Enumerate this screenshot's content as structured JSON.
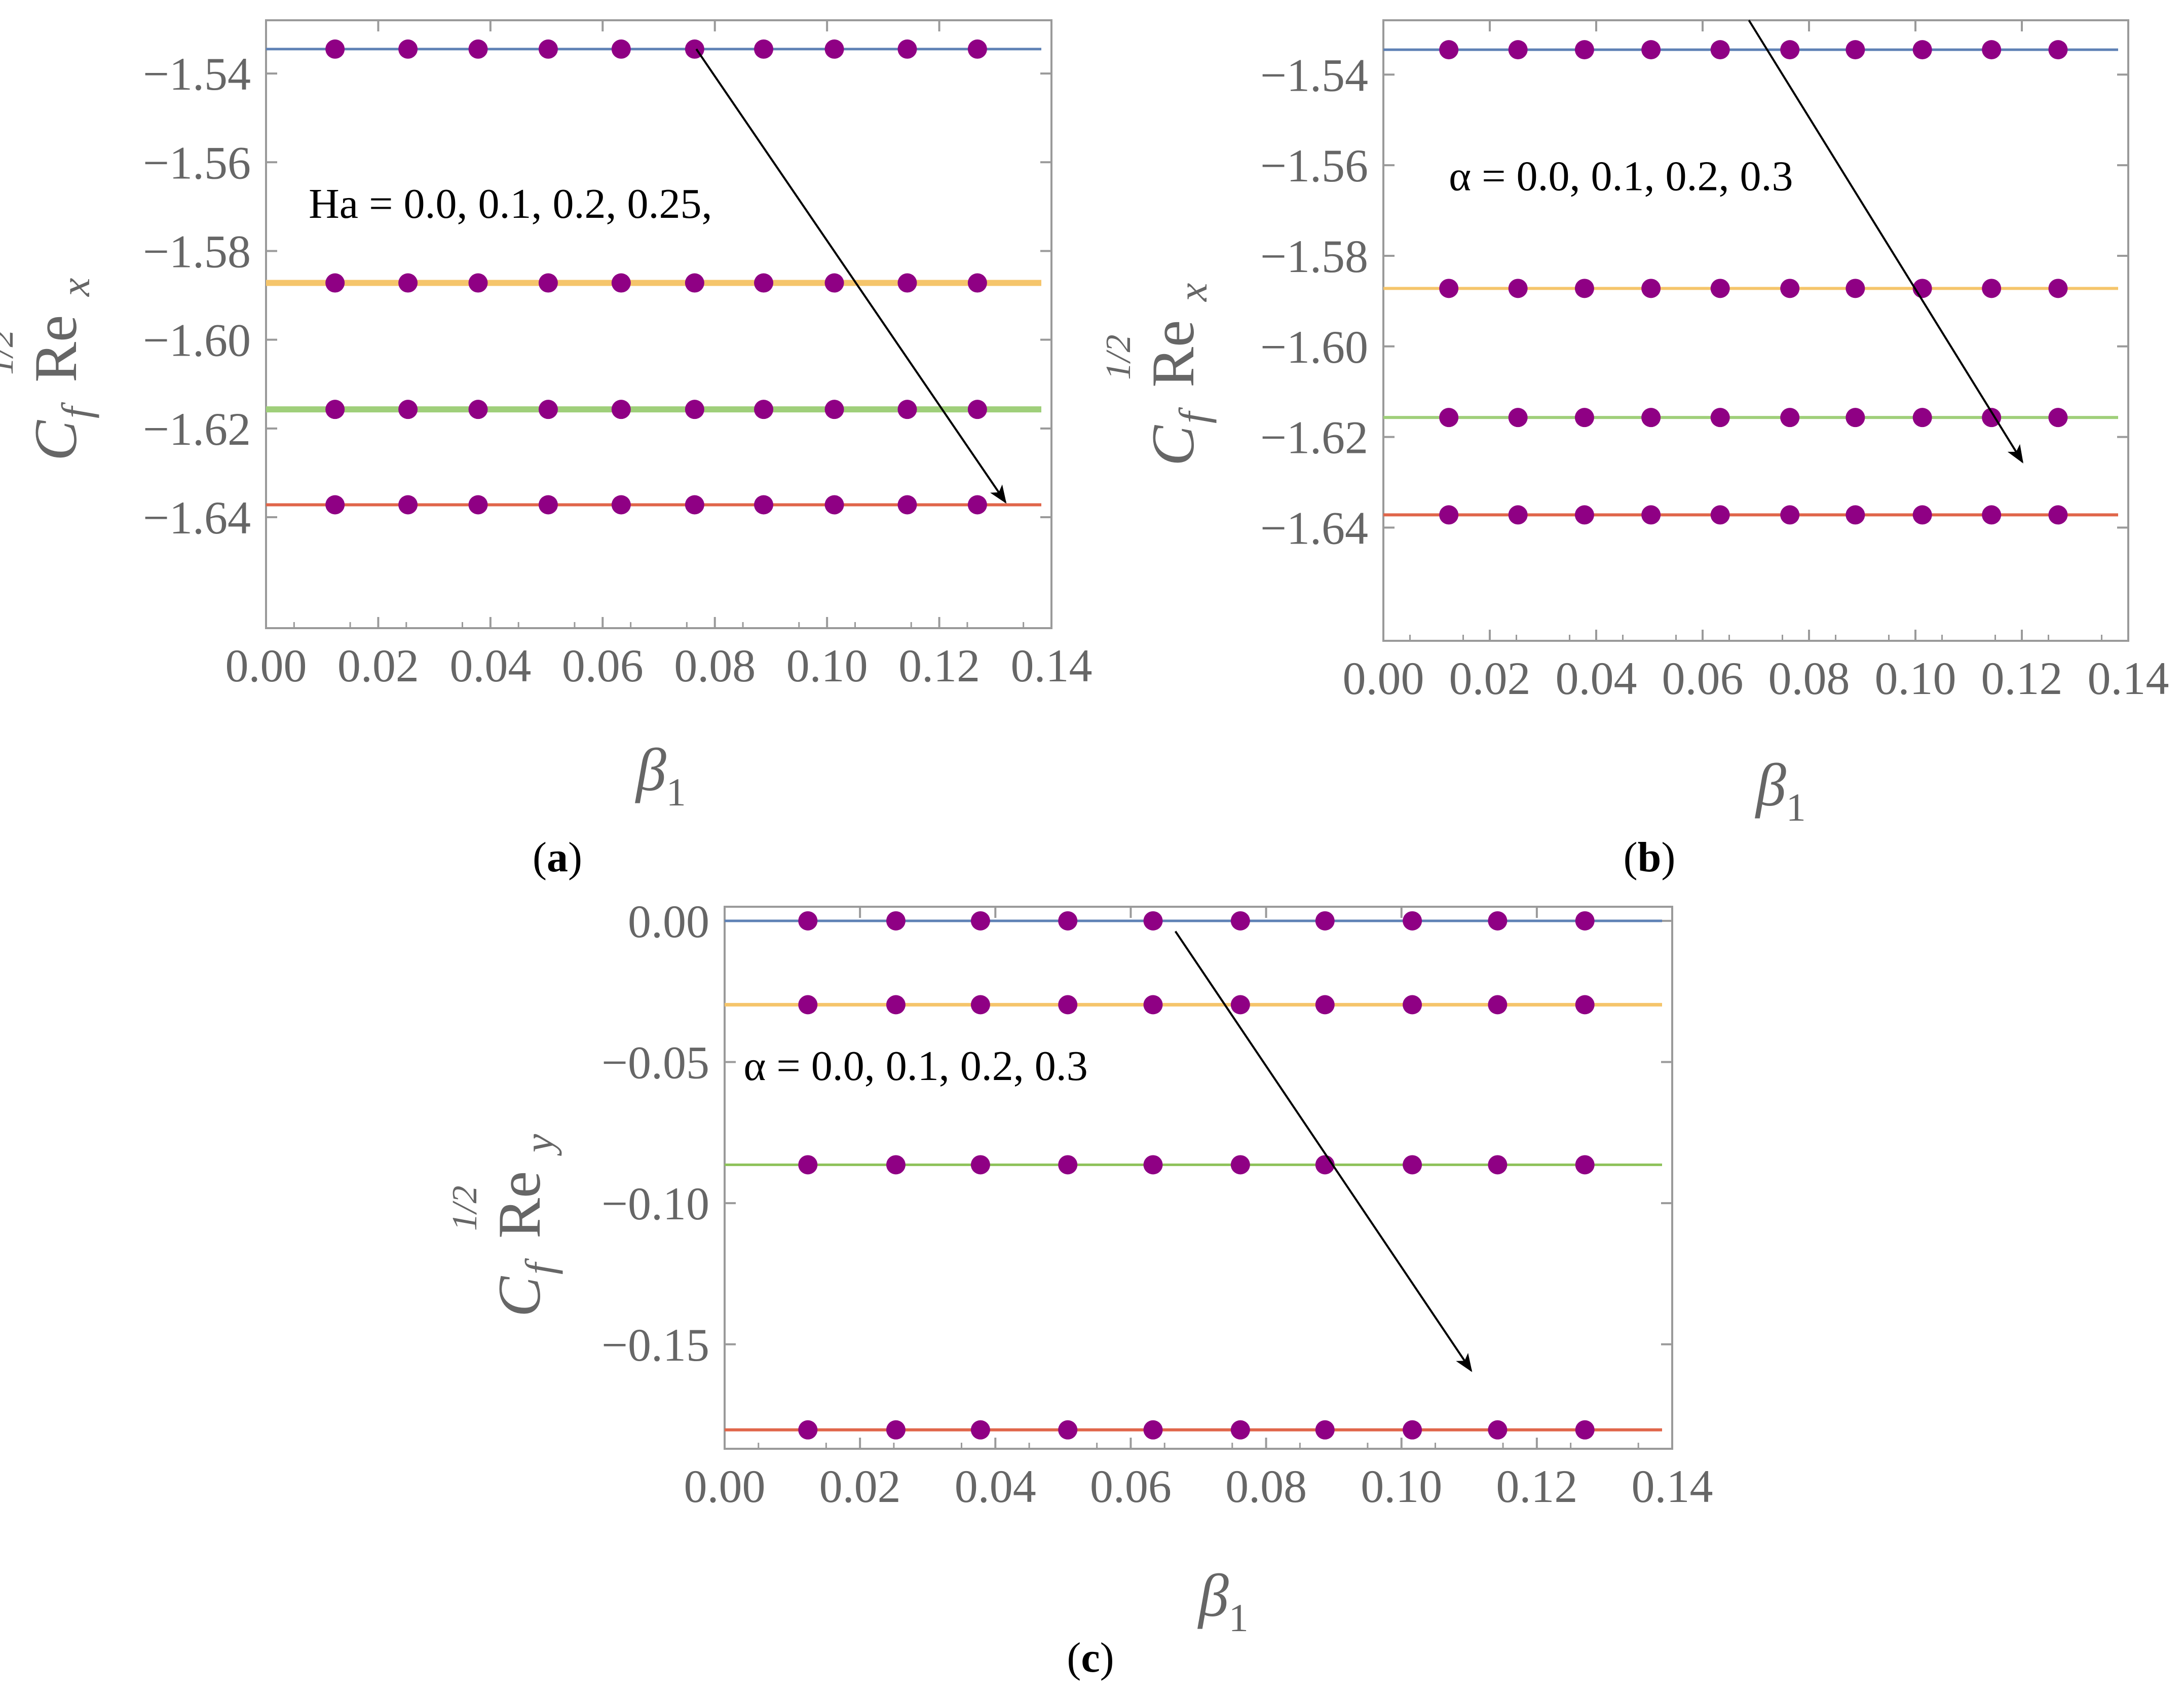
{
  "chart_data": [
    {
      "id": "a",
      "type": "line",
      "panel_label": "a",
      "xlabel": "β",
      "xlabel_sub": "1",
      "ylabel_parts": {
        "c": "C",
        "f": "f",
        "sup": "1/2",
        "re": "Re",
        "sub": "x"
      },
      "xlim": [
        0.0,
        0.14
      ],
      "ylim": [
        -1.665,
        -1.528
      ],
      "x_ticks": [
        "0.00",
        "0.02",
        "0.04",
        "0.06",
        "0.08",
        "0.10",
        "0.12",
        "0.14"
      ],
      "x_tick_values": [
        0.0,
        0.02,
        0.04,
        0.06,
        0.08,
        0.1,
        0.12,
        0.14
      ],
      "y_ticks": [
        "−1.54",
        "−1.56",
        "−1.58",
        "−1.60",
        "−1.62",
        "−1.64"
      ],
      "y_tick_values": [
        -1.54,
        -1.56,
        -1.58,
        -1.6,
        -1.62,
        -1.64
      ],
      "marker_x": [
        0.0123,
        0.0253,
        0.0378,
        0.0503,
        0.0633,
        0.0764,
        0.0887,
        0.1013,
        0.1143,
        0.1268
      ],
      "series": [
        {
          "y": -1.5345,
          "color": "#5e81b5",
          "width": 5
        },
        {
          "y": -1.5872,
          "color": "#f5c56b",
          "width": 12
        },
        {
          "y": -1.6157,
          "color": "#9fcf7a",
          "width": 12
        },
        {
          "y": -1.6372,
          "color": "#e0664a",
          "width": 6
        }
      ],
      "marker_color": "#8f0084",
      "annotation": "Ha = 0.0, 0.1,  0.2,  0.25,",
      "annotation_pos": {
        "x": 0.0076,
        "y": -1.5725
      },
      "arrow": {
        "from": [
          0.0767,
          -1.5345
        ],
        "to": [
          0.1318,
          -1.6366
        ]
      }
    },
    {
      "id": "b",
      "type": "line",
      "panel_label": "b",
      "xlabel": "β",
      "xlabel_sub": "1",
      "ylabel_parts": {
        "c": "C",
        "f": "f",
        "sup": "1/2",
        "re": "Re",
        "sub": "x"
      },
      "xlim": [
        0.0,
        0.14
      ],
      "ylim": [
        -1.665,
        -1.528
      ],
      "x_ticks": [
        "0.00",
        "0.02",
        "0.04",
        "0.06",
        "0.08",
        "0.10",
        "0.12",
        "0.14"
      ],
      "x_tick_values": [
        0.0,
        0.02,
        0.04,
        0.06,
        0.08,
        0.1,
        0.12,
        0.14
      ],
      "y_ticks": [
        "−1.54",
        "−1.56",
        "−1.58",
        "−1.60",
        "−1.62",
        "−1.64"
      ],
      "y_tick_values": [
        -1.54,
        -1.56,
        -1.58,
        -1.6,
        -1.62,
        -1.64
      ],
      "marker_x": [
        0.0123,
        0.0253,
        0.0378,
        0.0503,
        0.0633,
        0.0764,
        0.0887,
        0.1013,
        0.1143,
        0.1268
      ],
      "series": [
        {
          "y": -1.5345,
          "color": "#5e81b5",
          "width": 5
        },
        {
          "y": -1.5872,
          "color": "#f5c56b",
          "width": 6
        },
        {
          "y": -1.6157,
          "color": "#9fcf7a",
          "width": 6
        },
        {
          "y": -1.6372,
          "color": "#e0664a",
          "width": 6
        }
      ],
      "marker_color": "#8f0084",
      "annotation": "α = 0.0, 0.1,  0.2,  0.3",
      "annotation_pos": {
        "x": 0.0123,
        "y": -1.5655
      },
      "arrow": {
        "from": [
          0.0687,
          -1.528
        ],
        "to": [
          0.1201,
          -1.6255
        ]
      }
    },
    {
      "id": "c",
      "type": "line",
      "panel_label": "c",
      "xlabel": "β",
      "xlabel_sub": "1",
      "ylabel_parts": {
        "c": "C",
        "f": "f",
        "sup": "1/2",
        "re": "Re",
        "sub": "y"
      },
      "xlim": [
        0.0,
        0.14
      ],
      "ylim": [
        -0.187,
        0.005
      ],
      "x_ticks": [
        "0.00",
        "0.02",
        "0.04",
        "0.06",
        "0.08",
        "0.10",
        "0.12",
        "0.14"
      ],
      "x_tick_values": [
        0.0,
        0.02,
        0.04,
        0.06,
        0.08,
        0.1,
        0.12,
        0.14
      ],
      "y_ticks": [
        "0.00",
        "−0.05",
        "−0.10",
        "−0.15"
      ],
      "y_tick_values": [
        0.0,
        -0.05,
        -0.1,
        -0.15
      ],
      "marker_x": [
        0.0123,
        0.0253,
        0.0378,
        0.0507,
        0.0633,
        0.0762,
        0.0887,
        0.1016,
        0.1142,
        0.1271
      ],
      "series": [
        {
          "y": 0.0,
          "color": "#5e81b5",
          "width": 5
        },
        {
          "y": -0.0297,
          "color": "#f5c56b",
          "width": 7
        },
        {
          "y": -0.0864,
          "color": "#8ec25a",
          "width": 5
        },
        {
          "y": -0.1803,
          "color": "#e0664a",
          "width": 6
        }
      ],
      "marker_color": "#8f0084",
      "annotation": "α = 0.0, 0.1,  0.2,  0.3",
      "annotation_pos": {
        "x": 0.0028,
        "y": -0.0564
      },
      "arrow": {
        "from": [
          0.0666,
          -0.0037
        ],
        "to": [
          0.1103,
          -0.1593
        ]
      }
    }
  ]
}
